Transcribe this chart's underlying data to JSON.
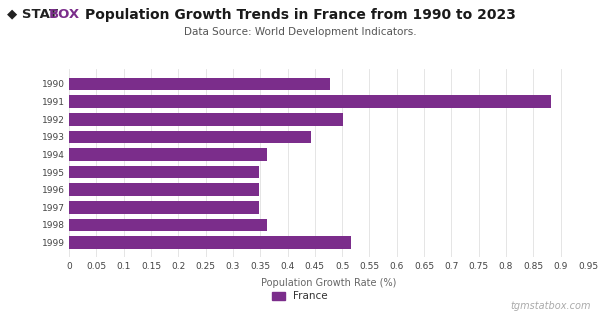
{
  "title": "Population Growth Trends in France from 1990 to 2023",
  "subtitle": "Data Source: World Development Indicators.",
  "xlabel": "Population Growth Rate (%)",
  "bar_color": "#7B2D8B",
  "background_color": "#ffffff",
  "years": [
    "1990",
    "1991",
    "1992",
    "1993",
    "1994",
    "1995",
    "1996",
    "1997",
    "1998",
    "1999"
  ],
  "values": [
    0.478,
    0.882,
    0.502,
    0.443,
    0.363,
    0.348,
    0.348,
    0.348,
    0.363,
    0.516
  ],
  "xlim": [
    0,
    0.95
  ],
  "xticks": [
    0,
    0.05,
    0.1,
    0.15,
    0.2,
    0.25,
    0.3,
    0.35,
    0.4,
    0.45,
    0.5,
    0.55,
    0.6,
    0.65,
    0.7,
    0.75,
    0.8,
    0.85,
    0.9,
    0.95
  ],
  "legend_label": "France",
  "watermark": "tgmstatbox.com",
  "grid_color": "#e0e0e0",
  "title_fontsize": 10,
  "subtitle_fontsize": 7.5,
  "tick_fontsize": 6.5,
  "xlabel_fontsize": 7,
  "legend_fontsize": 7.5,
  "watermark_fontsize": 7,
  "logo_stat_color": "#222222",
  "logo_box_color": "#7B2D8B",
  "bar_height": 0.72
}
